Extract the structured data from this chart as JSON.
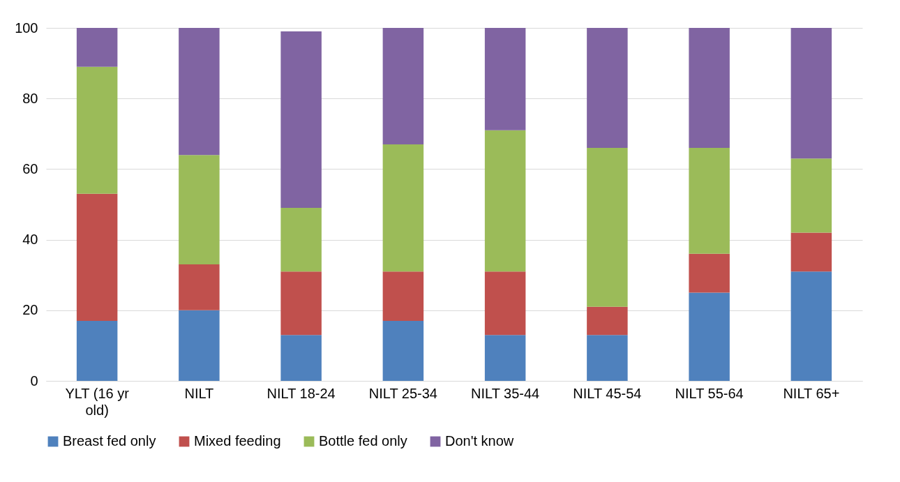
{
  "chart_data": {
    "type": "bar",
    "stacked": true,
    "categories": [
      "YLT (16 yr old)",
      "NILT",
      "NILT 18-24",
      "NILT 25-34",
      "NILT 35-44",
      "NILT 45-54",
      "NILT 55-64",
      "NILT 65+"
    ],
    "series": [
      {
        "name": "Breast fed only",
        "color": "#4f81bd",
        "values": [
          17,
          20,
          13,
          17,
          13,
          13,
          25,
          31
        ]
      },
      {
        "name": "Mixed feeding",
        "color": "#c0504d",
        "values": [
          36,
          13,
          18,
          14,
          18,
          8,
          11,
          11
        ]
      },
      {
        "name": "Bottle fed only",
        "color": "#9bbb59",
        "values": [
          36,
          31,
          18,
          36,
          40,
          45,
          30,
          21
        ]
      },
      {
        "name": "Don't know",
        "color": "#8064a2",
        "values": [
          11,
          36,
          50,
          33,
          29,
          34,
          34,
          37
        ]
      }
    ],
    "ylim": [
      0,
      100
    ],
    "yticks": [
      0,
      20,
      40,
      60,
      80,
      100
    ],
    "grid": "y",
    "legend": "bottom"
  }
}
